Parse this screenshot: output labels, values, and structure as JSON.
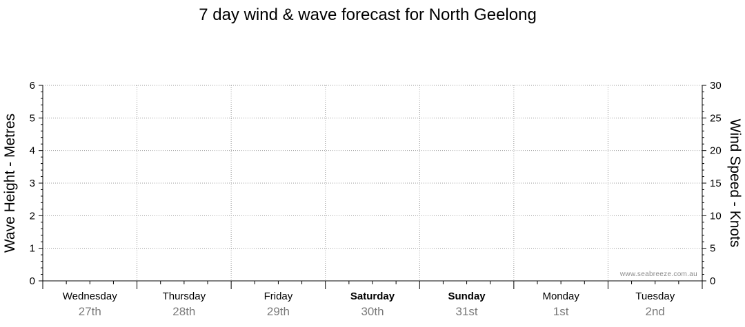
{
  "chart_data": {
    "type": "line",
    "title": "7 day wind & wave forecast for North Geelong",
    "y_left": {
      "label": "Wave Height - Metres",
      "ticks": [
        "0",
        "1",
        "2",
        "3",
        "4",
        "5",
        "6"
      ],
      "range": [
        0,
        6
      ]
    },
    "y_right": {
      "label": "Wind Speed - Knots",
      "ticks": [
        "0",
        "5",
        "10",
        "15",
        "20",
        "25",
        "30"
      ],
      "range": [
        0,
        30
      ]
    },
    "days": [
      {
        "name": "Wednesday",
        "date": "27th",
        "weekend": false
      },
      {
        "name": "Thursday",
        "date": "28th",
        "weekend": false
      },
      {
        "name": "Friday",
        "date": "29th",
        "weekend": false
      },
      {
        "name": "Saturday",
        "date": "30th",
        "weekend": true
      },
      {
        "name": "Sunday",
        "date": "31st",
        "weekend": true
      },
      {
        "name": "Monday",
        "date": "1st",
        "weekend": false
      },
      {
        "name": "Tuesday",
        "date": "2nd",
        "weekend": false
      }
    ],
    "series": [],
    "grid": true,
    "watermark": "www.seabreeze.com.au"
  }
}
